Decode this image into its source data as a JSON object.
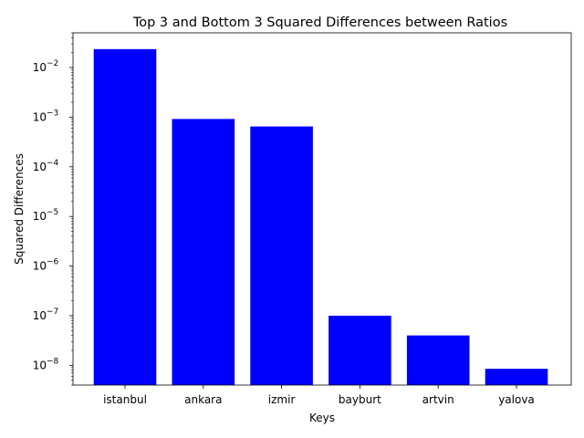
{
  "chart_data": {
    "type": "bar",
    "title": "Top 3 and Bottom 3 Squared Differences between Ratios",
    "xlabel": "Keys",
    "ylabel": "Squared Differences",
    "yscale": "log",
    "ylim": [
      4e-09,
      0.05
    ],
    "categories": [
      "istanbul",
      "ankara",
      "izmir",
      "bayburt",
      "artvin",
      "yalova"
    ],
    "values": [
      0.0235,
      0.00092,
      0.00065,
      1e-07,
      4e-08,
      8.5e-09
    ],
    "bar_color": "#0000ff",
    "major_ticks": [
      {
        "value": 1e-08,
        "base": "10",
        "exp": "−8"
      },
      {
        "value": 1e-07,
        "base": "10",
        "exp": "−7"
      },
      {
        "value": 1e-06,
        "base": "10",
        "exp": "−6"
      },
      {
        "value": 1e-05,
        "base": "10",
        "exp": "−5"
      },
      {
        "value": 0.0001,
        "base": "10",
        "exp": "−4"
      },
      {
        "value": 0.001,
        "base": "10",
        "exp": "−3"
      },
      {
        "value": 0.01,
        "base": "10",
        "exp": "−2"
      }
    ],
    "grid": false,
    "legend": "none"
  }
}
